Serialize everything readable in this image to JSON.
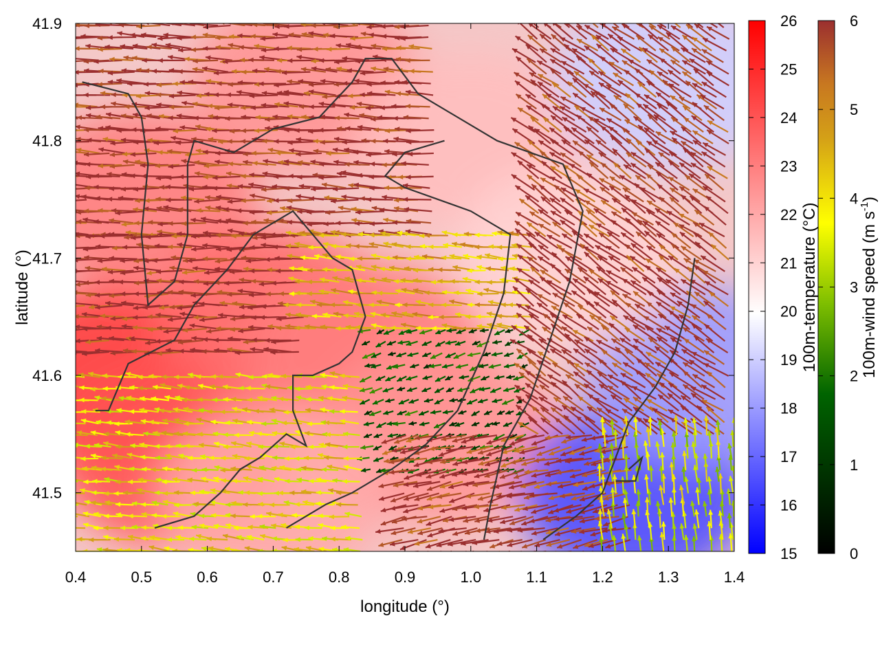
{
  "chart_data": {
    "type": "heatmap",
    "subtype": "wind-vector-field over temperature map",
    "title": "",
    "xlabel": "longitude (°)",
    "ylabel": "latitude (°)",
    "xlim": [
      0.4,
      1.4
    ],
    "ylim": [
      41.45,
      41.9
    ],
    "xticks": [
      "0.4",
      "0.5",
      "0.6",
      "0.7",
      "0.8",
      "0.9",
      "1.0",
      "1.1",
      "1.2",
      "1.3",
      "1.4"
    ],
    "yticks": [
      "41.5",
      "41.6",
      "41.7",
      "41.8",
      "41.9"
    ],
    "grid": false,
    "temperature_colorbar": {
      "label": "100m-temperature (°C)",
      "range": [
        15,
        26
      ],
      "ticks": [
        "15",
        "16",
        "17",
        "18",
        "19",
        "20",
        "21",
        "22",
        "23",
        "24",
        "25",
        "26"
      ],
      "colors": [
        "#0000ff",
        "#ffffff",
        "#ff0000"
      ]
    },
    "wind_colorbar": {
      "label_main": "100m-wind speed (m s",
      "label_sup": "-1",
      "label_end": ")",
      "range": [
        0,
        6
      ],
      "ticks": [
        "0",
        "1",
        "2",
        "3",
        "4",
        "5",
        "6"
      ],
      "colors": [
        "#000000",
        "#006400",
        "#7fbf00",
        "#ffff00",
        "#d4a017",
        "#c87820",
        "#9b2f2f"
      ]
    },
    "temperature_regions": [
      {
        "lon": 0.45,
        "lat": 41.6,
        "temp": 24.5
      },
      {
        "lon": 0.55,
        "lat": 41.53,
        "temp": 24.0
      },
      {
        "lon": 0.5,
        "lat": 41.75,
        "temp": 23.0
      },
      {
        "lon": 0.7,
        "lat": 41.65,
        "temp": 23.5
      },
      {
        "lon": 0.85,
        "lat": 41.62,
        "temp": 23.0
      },
      {
        "lon": 0.95,
        "lat": 41.55,
        "temp": 22.5
      },
      {
        "lon": 0.75,
        "lat": 41.85,
        "temp": 22.5
      },
      {
        "lon": 1.0,
        "lat": 41.8,
        "temp": 21.5
      },
      {
        "lon": 0.7,
        "lat": 41.5,
        "temp": 22.0
      },
      {
        "lon": 1.3,
        "lat": 41.85,
        "temp": 19.0
      },
      {
        "lon": 1.25,
        "lat": 41.5,
        "temp": 16.5
      },
      {
        "lon": 1.35,
        "lat": 41.6,
        "temp": 18.0
      },
      {
        "lon": 1.15,
        "lat": 41.7,
        "temp": 21.0
      }
    ],
    "wind_field_regions": [
      {
        "lon_range": [
          0.4,
          0.95
        ],
        "lat_range": [
          41.72,
          41.9
        ],
        "u": -1,
        "v": 0.05,
        "speed": 6
      },
      {
        "lon_range": [
          0.4,
          0.75
        ],
        "lat_range": [
          41.62,
          41.72
        ],
        "u": -1,
        "v": 0.0,
        "speed": 6
      },
      {
        "lon_range": [
          0.75,
          1.1
        ],
        "lat_range": [
          41.64,
          41.72
        ],
        "u": -1,
        "v": 0.1,
        "speed": 4.5
      },
      {
        "lon_range": [
          0.85,
          1.1
        ],
        "lat_range": [
          41.52,
          41.64
        ],
        "u": -0.6,
        "v": -0.2,
        "speed": 1.5
      },
      {
        "lon_range": [
          0.4,
          0.85
        ],
        "lat_range": [
          41.45,
          41.6
        ],
        "u": -1,
        "v": 0.1,
        "speed": 4.0
      },
      {
        "lon_range": [
          1.1,
          1.4
        ],
        "lat_range": [
          41.55,
          41.9
        ],
        "u": -0.7,
        "v": 0.5,
        "speed": 6
      },
      {
        "lon_range": [
          0.9,
          1.25
        ],
        "lat_range": [
          41.45,
          41.55
        ],
        "u": -0.9,
        "v": -0.2,
        "speed": 6
      },
      {
        "lon_range": [
          1.2,
          1.4
        ],
        "lat_range": [
          41.45,
          41.55
        ],
        "u": -0.1,
        "v": 1,
        "speed": 3.5
      }
    ],
    "coastline_paths": [
      [
        [
          0.43,
          41.57
        ],
        [
          0.45,
          41.57
        ],
        [
          0.48,
          41.61
        ],
        [
          0.55,
          41.63
        ],
        [
          0.58,
          41.66
        ],
        [
          0.63,
          41.69
        ],
        [
          0.67,
          41.72
        ],
        [
          0.73,
          41.74
        ],
        [
          0.76,
          41.72
        ],
        [
          0.79,
          41.7
        ],
        [
          0.82,
          41.69
        ],
        [
          0.84,
          41.65
        ],
        [
          0.82,
          41.62
        ],
        [
          0.8,
          41.61
        ],
        [
          0.76,
          41.6
        ],
        [
          0.73,
          41.6
        ],
        [
          0.73,
          41.57
        ],
        [
          0.75,
          41.54
        ],
        [
          0.72,
          41.55
        ],
        [
          0.7,
          41.54
        ],
        [
          0.68,
          41.53
        ],
        [
          0.65,
          41.52
        ],
        [
          0.62,
          41.5
        ],
        [
          0.58,
          41.48
        ],
        [
          0.52,
          41.47
        ]
      ],
      [
        [
          0.41,
          41.85
        ],
        [
          0.48,
          41.84
        ],
        [
          0.5,
          41.82
        ],
        [
          0.51,
          41.78
        ],
        [
          0.5,
          41.72
        ],
        [
          0.51,
          41.66
        ],
        [
          0.55,
          41.68
        ],
        [
          0.57,
          41.72
        ],
        [
          0.57,
          41.78
        ],
        [
          0.58,
          41.8
        ],
        [
          0.64,
          41.79
        ],
        [
          0.7,
          41.81
        ],
        [
          0.77,
          41.82
        ],
        [
          0.82,
          41.85
        ],
        [
          0.84,
          41.87
        ],
        [
          0.88,
          41.87
        ],
        [
          0.92,
          41.84
        ],
        [
          1.04,
          41.8
        ],
        [
          1.14,
          41.78
        ],
        [
          1.17,
          41.74
        ],
        [
          1.15,
          41.68
        ],
        [
          1.12,
          41.63
        ],
        [
          1.09,
          41.58
        ],
        [
          1.05,
          41.54
        ],
        [
          1.03,
          41.49
        ],
        [
          1.02,
          41.46
        ]
      ],
      [
        [
          0.96,
          41.8
        ],
        [
          0.9,
          41.79
        ],
        [
          0.87,
          41.77
        ],
        [
          0.9,
          41.76
        ],
        [
          1.0,
          41.74
        ],
        [
          1.06,
          41.72
        ],
        [
          1.05,
          41.67
        ],
        [
          1.02,
          41.62
        ],
        [
          0.98,
          41.57
        ],
        [
          0.93,
          41.54
        ],
        [
          0.88,
          41.52
        ],
        [
          0.82,
          41.5
        ],
        [
          0.78,
          41.49
        ],
        [
          0.72,
          41.47
        ]
      ],
      [
        [
          1.34,
          41.7
        ],
        [
          1.33,
          41.66
        ],
        [
          1.31,
          41.62
        ],
        [
          1.28,
          41.59
        ],
        [
          1.24,
          41.56
        ],
        [
          1.22,
          41.53
        ],
        [
          1.2,
          41.5
        ],
        [
          1.16,
          41.48
        ],
        [
          1.11,
          41.46
        ]
      ],
      [
        [
          1.24,
          41.52
        ],
        [
          1.26,
          41.53
        ],
        [
          1.25,
          41.51
        ],
        [
          1.22,
          41.51
        ]
      ]
    ]
  }
}
